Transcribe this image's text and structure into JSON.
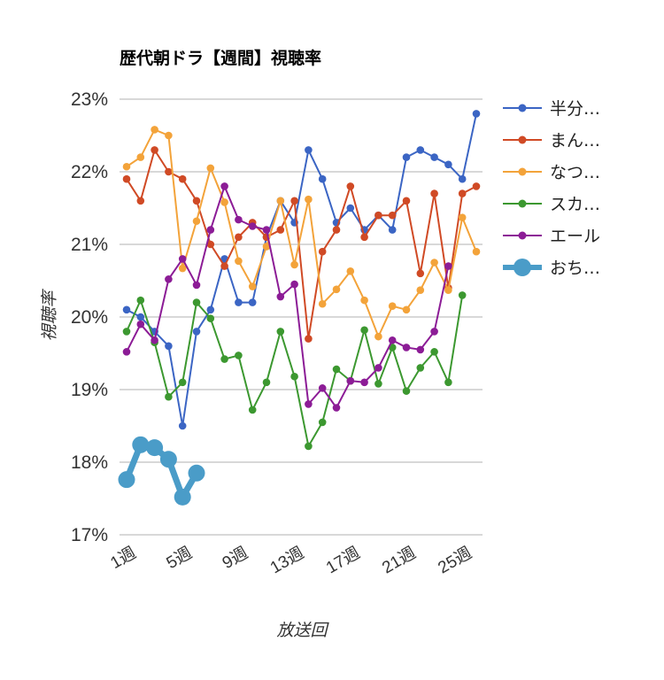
{
  "chart_data": {
    "type": "line",
    "title": "歴代朝ドラ【週間】視聴率",
    "xlabel": "放送回",
    "ylabel": "視聴率",
    "ylim": [
      17,
      23
    ],
    "yticks": [
      "17%",
      "18%",
      "19%",
      "20%",
      "21%",
      "22%",
      "23%"
    ],
    "xticks": [
      "1週",
      "5週",
      "9週",
      "13週",
      "17週",
      "21週",
      "25週"
    ],
    "grid": true,
    "legend_position": "right",
    "series": [
      {
        "name": "半分…",
        "color": "#3b65c4",
        "values": [
          20.1,
          20.0,
          19.8,
          19.6,
          18.5,
          19.8,
          20.1,
          20.8,
          20.2,
          20.2,
          21.1,
          21.6,
          21.3,
          22.3,
          21.9,
          21.3,
          21.5,
          21.2,
          21.4,
          21.2,
          22.2,
          22.3,
          22.2,
          22.1,
          21.9,
          22.8
        ]
      },
      {
        "name": "まん…",
        "color": "#d04a25",
        "values": [
          21.9,
          21.6,
          22.3,
          22.0,
          21.9,
          21.6,
          21.0,
          20.7,
          21.1,
          21.3,
          21.1,
          21.2,
          21.6,
          19.7,
          20.9,
          21.2,
          21.8,
          21.1,
          21.4,
          21.4,
          21.6,
          20.6,
          21.7,
          20.4,
          21.7,
          21.8
        ]
      },
      {
        "name": "なつ…",
        "color": "#f3a33a",
        "values": [
          22.07,
          22.2,
          22.58,
          22.5,
          20.67,
          21.32,
          22.05,
          21.58,
          20.77,
          20.42,
          20.97,
          21.6,
          20.72,
          21.62,
          20.18,
          20.38,
          20.63,
          20.23,
          19.73,
          20.15,
          20.1,
          20.37,
          20.75,
          20.37,
          21.37,
          20.9
        ]
      },
      {
        "name": "スカ…",
        "color": "#3c9830",
        "values": [
          19.8,
          20.23,
          19.65,
          18.9,
          19.1,
          20.2,
          19.98,
          19.42,
          19.47,
          18.72,
          19.1,
          19.8,
          19.18,
          18.22,
          18.55,
          19.28,
          19.12,
          19.82,
          19.08,
          19.58,
          18.98,
          19.3,
          19.52,
          19.1,
          20.3
        ]
      },
      {
        "name": "エール",
        "color": "#8c1c96",
        "values": [
          19.52,
          19.9,
          19.68,
          20.52,
          20.8,
          20.44,
          21.2,
          21.8,
          21.34,
          21.25,
          21.2,
          20.28,
          20.45,
          18.8,
          19.02,
          18.75,
          19.12,
          19.1,
          19.3,
          19.68,
          19.58,
          19.55,
          19.8,
          20.7
        ]
      },
      {
        "name": "おち…",
        "color": "#4a9cc8",
        "thick": true,
        "values": [
          17.76,
          18.24,
          18.2,
          18.04,
          17.52,
          17.85
        ]
      }
    ]
  }
}
